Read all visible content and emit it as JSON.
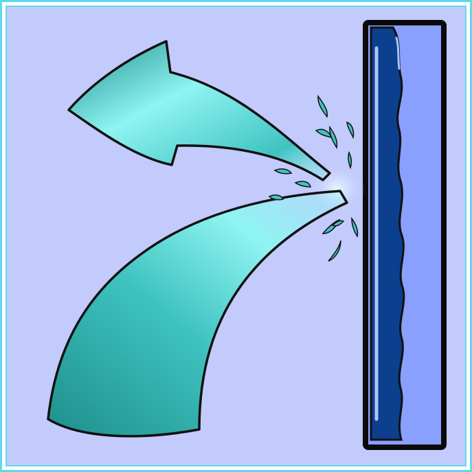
{
  "icon": {
    "name": "water-splash-off-wall-icon",
    "description_free": true
  },
  "colors": {
    "outer_border": "#5fd8ee",
    "background": "#c3cafc",
    "panel_frame": "#0a0a0a",
    "panel_light": "#8aa0ff",
    "water_dark": "#0c3f8d",
    "water_highlight": "#a9c4ff",
    "stream_dark": "#1e8f8c",
    "stream_mid": "#3fc3c0",
    "stream_light": "#8ff4f2",
    "droplet": "#3fc3c0",
    "outline": "#111111"
  }
}
